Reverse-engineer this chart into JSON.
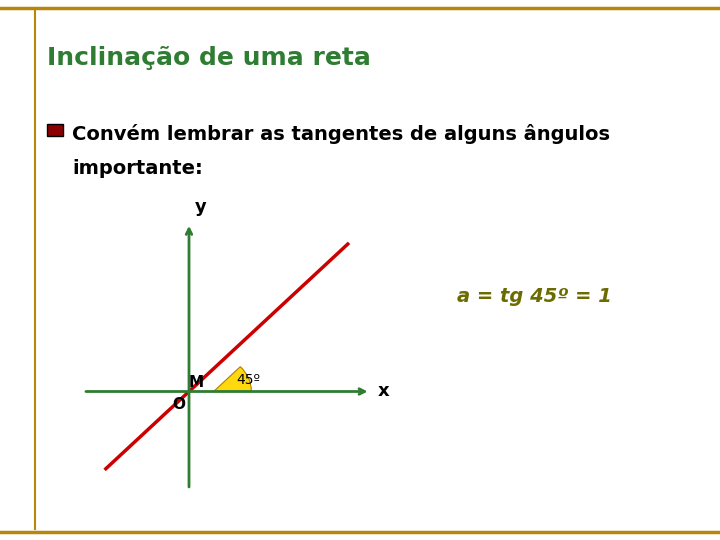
{
  "title": "Inclinação de uma reta",
  "title_color": "#2E7D32",
  "title_fontsize": 18,
  "bullet_color": "#8B0000",
  "bullet_text_line1": "Convém lembrar as tangentes de alguns ângulos",
  "bullet_text_line2": "importante:",
  "bullet_fontsize": 14,
  "annotation_text": "a = tg 45º = 1",
  "annotation_color": "#6B6B00",
  "annotation_fontsize": 14,
  "graph_bg_color": "#E8F0E0",
  "axis_color": "#2E7D32",
  "line_color": "#CC0000",
  "angle_label": "45º",
  "angle_wedge_color": "#FFD700",
  "M_label": "M",
  "O_label": "O",
  "x_label": "x",
  "y_label": "y",
  "background_color": "#FFFFFF",
  "border_color": "#B8860B"
}
